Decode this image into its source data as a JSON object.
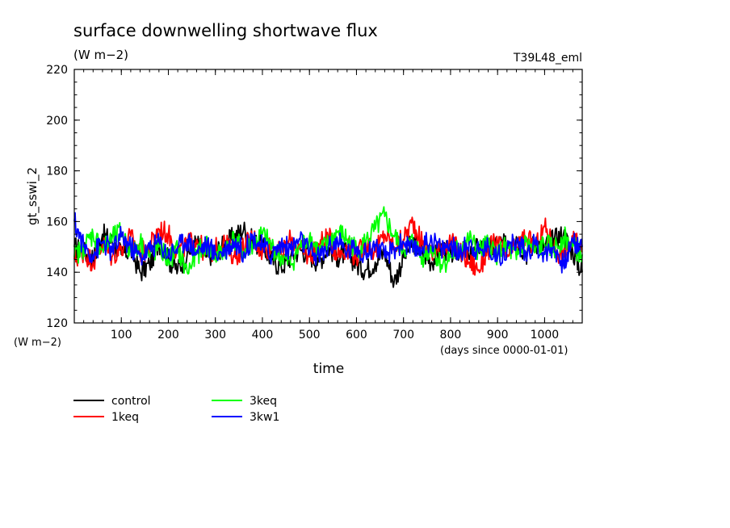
{
  "chart_data": {
    "type": "line",
    "title": "surface downwelling shortwave flux",
    "subtitle": "(W m−2)",
    "annotation_right": "T39L48_eml",
    "xlabel": "time",
    "x_units": "(days since 0000-01-01)",
    "ylabel": "gt_sswi_2",
    "y_units": "(W m−2)",
    "xlim": [
      0,
      1080
    ],
    "ylim": [
      120,
      220
    ],
    "x_ticks": [
      100,
      200,
      300,
      400,
      500,
      600,
      700,
      800,
      900,
      1000
    ],
    "y_ticks": [
      120,
      140,
      160,
      180,
      200,
      220
    ],
    "grid": false,
    "legend_position": "bottom-left",
    "series": [
      {
        "name": "control",
        "color": "#000000",
        "x": [
          0,
          20,
          40,
          60,
          80,
          100,
          120,
          140,
          160,
          180,
          200,
          220,
          240,
          260,
          280,
          300,
          320,
          340,
          360,
          380,
          400,
          420,
          440,
          460,
          480,
          500,
          520,
          540,
          560,
          580,
          600,
          620,
          640,
          660,
          680,
          700,
          720,
          740,
          760,
          780,
          800,
          820,
          840,
          860,
          880,
          900,
          920,
          940,
          960,
          980,
          1000,
          1020,
          1040,
          1060,
          1080
        ],
        "values": [
          150,
          148,
          145,
          155,
          152,
          147,
          149,
          140,
          143,
          152,
          145,
          141,
          147,
          152,
          146,
          148,
          151,
          154,
          157,
          152,
          150,
          145,
          142,
          146,
          149,
          147,
          144,
          150,
          146,
          148,
          143,
          141,
          144,
          148,
          136,
          146,
          152,
          148,
          144,
          150,
          147,
          149,
          145,
          151,
          148,
          152,
          150,
          154,
          147,
          152,
          150,
          153,
          155,
          148,
          140
        ]
      },
      {
        "name": "1keq",
        "color": "#ff0000",
        "x": [
          0,
          20,
          40,
          60,
          80,
          100,
          120,
          140,
          160,
          180,
          200,
          220,
          240,
          260,
          280,
          300,
          320,
          340,
          360,
          380,
          400,
          420,
          440,
          460,
          480,
          500,
          520,
          540,
          560,
          580,
          600,
          620,
          640,
          660,
          680,
          700,
          720,
          740,
          760,
          780,
          800,
          820,
          840,
          860,
          880,
          900,
          920,
          940,
          960,
          980,
          1000,
          1020,
          1040,
          1060,
          1080
        ],
        "values": [
          145,
          148,
          144,
          151,
          146,
          150,
          154,
          147,
          150,
          157,
          155,
          148,
          151,
          153,
          147,
          149,
          152,
          146,
          150,
          154,
          148,
          151,
          147,
          153,
          149,
          146,
          151,
          154,
          147,
          150,
          146,
          152,
          148,
          155,
          150,
          153,
          160,
          151,
          147,
          150,
          152,
          148,
          144,
          141,
          149,
          152,
          146,
          150,
          154,
          149,
          158,
          150,
          146,
          153,
          148
        ]
      },
      {
        "name": "3keq",
        "color": "#00ff00",
        "x": [
          0,
          20,
          40,
          60,
          80,
          100,
          120,
          140,
          160,
          180,
          200,
          220,
          240,
          260,
          280,
          300,
          320,
          340,
          360,
          380,
          400,
          420,
          440,
          460,
          480,
          500,
          520,
          540,
          560,
          580,
          600,
          620,
          640,
          660,
          680,
          700,
          720,
          740,
          760,
          780,
          800,
          820,
          840,
          860,
          880,
          900,
          920,
          940,
          960,
          980,
          1000,
          1020,
          1040,
          1060,
          1080
        ],
        "values": [
          146,
          150,
          155,
          149,
          153,
          156,
          148,
          152,
          146,
          150,
          145,
          149,
          140,
          147,
          151,
          146,
          149,
          153,
          148,
          151,
          155,
          150,
          146,
          143,
          150,
          154,
          148,
          151,
          156,
          153,
          149,
          152,
          157,
          162,
          154,
          149,
          152,
          146,
          150,
          143,
          146,
          150,
          153,
          148,
          151,
          147,
          150,
          145,
          152,
          148,
          151,
          149,
          154,
          150,
          147
        ]
      },
      {
        "name": "3kw1",
        "color": "#0000ff",
        "x": [
          0,
          20,
          40,
          60,
          80,
          100,
          120,
          140,
          160,
          180,
          200,
          220,
          240,
          260,
          280,
          300,
          320,
          340,
          360,
          380,
          400,
          420,
          440,
          460,
          480,
          500,
          520,
          540,
          560,
          580,
          600,
          620,
          640,
          660,
          680,
          700,
          720,
          740,
          760,
          780,
          800,
          820,
          840,
          860,
          880,
          900,
          920,
          940,
          960,
          980,
          1000,
          1020,
          1040,
          1060,
          1080
        ],
        "values": [
          160,
          150,
          147,
          152,
          148,
          154,
          150,
          146,
          149,
          152,
          147,
          150,
          153,
          148,
          151,
          147,
          149,
          152,
          148,
          154,
          150,
          147,
          151,
          149,
          153,
          148,
          146,
          150,
          152,
          148,
          150,
          147,
          151,
          146,
          149,
          152,
          148,
          150,
          153,
          149,
          151,
          147,
          152,
          148,
          150,
          146,
          149,
          152,
          148,
          151,
          147,
          150,
          143,
          152,
          150
        ]
      }
    ]
  }
}
